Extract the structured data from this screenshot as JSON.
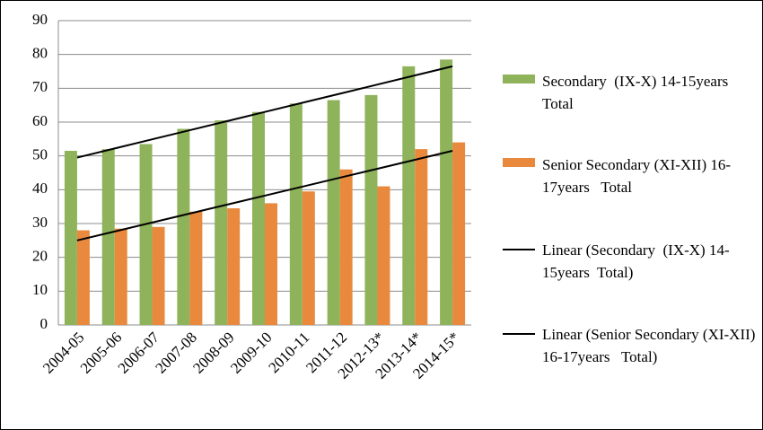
{
  "chart_data": {
    "type": "bar",
    "categories": [
      "2004-05",
      "2005-06",
      "2006-07",
      "2007-08",
      "2008-09",
      "2009-10",
      "2010-11",
      "2011-12",
      "2012-13*",
      "2013-14*",
      "2014-15*"
    ],
    "series": [
      {
        "name": "Secondary  (IX-X) 14-15years  Total",
        "type": "bar",
        "color": "#8fb35a",
        "values": [
          51.5,
          52,
          53.5,
          58,
          60.5,
          63,
          65.5,
          66.5,
          68,
          76.5,
          78.5
        ]
      },
      {
        "name": "Senior Secondary (XI-XII) 16-17years   Total",
        "type": "bar",
        "color": "#e8893e",
        "values": [
          28,
          28.5,
          29,
          33.5,
          34.5,
          36,
          39.5,
          46,
          41,
          52,
          54
        ]
      },
      {
        "name": "Linear (Secondary  (IX-X) 14-15years  Total)",
        "type": "line",
        "color": "#000000",
        "values": [
          49.5,
          52.2,
          54.9,
          57.6,
          60.3,
          63,
          65.7,
          68.4,
          71.1,
          73.8,
          76.5
        ]
      },
      {
        "name": "Linear (Senior Secondary (XI-XII) 16-17years   Total)",
        "type": "line",
        "color": "#000000",
        "values": [
          25,
          27.65,
          30.3,
          32.95,
          35.6,
          38.25,
          40.9,
          43.55,
          46.2,
          48.85,
          51.5
        ]
      }
    ],
    "ylim": [
      0,
      90
    ],
    "yticks": [
      0,
      10,
      20,
      30,
      40,
      50,
      60,
      70,
      80,
      90
    ],
    "grid": true,
    "legend": "right"
  }
}
